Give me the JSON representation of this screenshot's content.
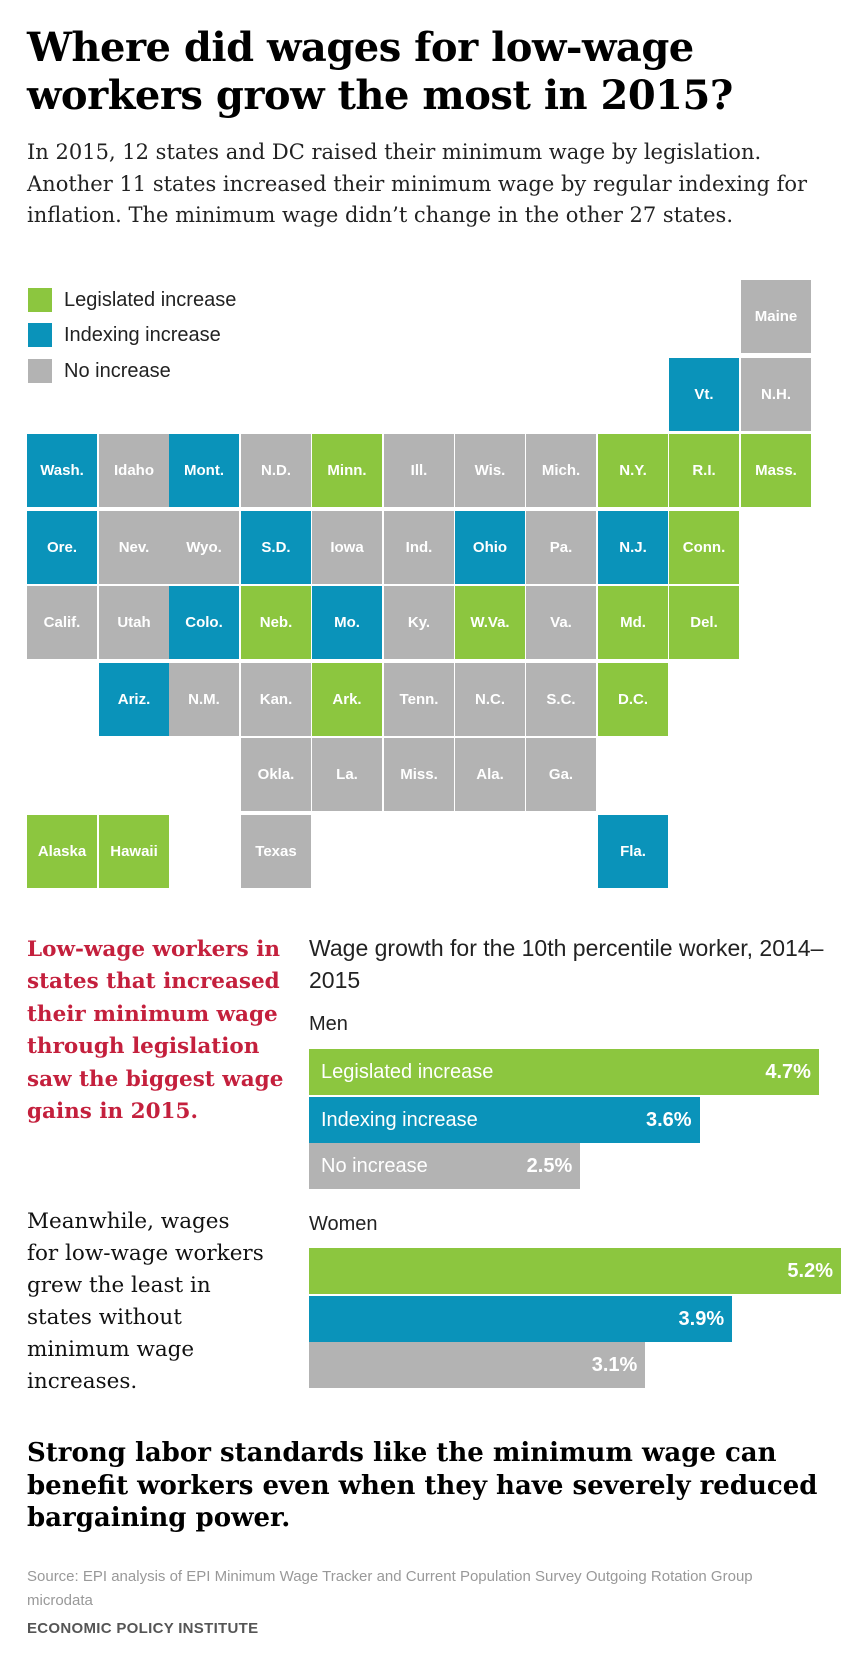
{
  "title": "Where did wages for low-wage workers grow the most in 2015?",
  "intro": "In 2015, 12 states and DC raised their minimum wage by legislation. Another 11 states increased their minimum wage by regular indexing for inflation. The minimum wage didn’t change in the other 27 states.",
  "colors": {
    "legislated": "#8cc63f",
    "indexing": "#0a93ba",
    "none": "#b3b3b3",
    "accent_red": "#c4203d"
  },
  "legend": {
    "legislated": "Legislated increase",
    "indexing": "Indexing increase",
    "none": "No increase"
  },
  "map_tiles": [
    {
      "label": "Maine",
      "status": "none"
    },
    {
      "label": "Vt.",
      "status": "indexing"
    },
    {
      "label": "N.H.",
      "status": "none"
    },
    {
      "label": "Wash.",
      "status": "indexing"
    },
    {
      "label": "Idaho",
      "status": "none"
    },
    {
      "label": "Mont.",
      "status": "indexing"
    },
    {
      "label": "N.D.",
      "status": "none"
    },
    {
      "label": "Minn.",
      "status": "legislated"
    },
    {
      "label": "Ill.",
      "status": "none"
    },
    {
      "label": "Wis.",
      "status": "none"
    },
    {
      "label": "Mich.",
      "status": "none"
    },
    {
      "label": "N.Y.",
      "status": "legislated"
    },
    {
      "label": "R.I.",
      "status": "legislated"
    },
    {
      "label": "Mass.",
      "status": "legislated"
    },
    {
      "label": "Ore.",
      "status": "indexing"
    },
    {
      "label": "Nev.",
      "status": "none"
    },
    {
      "label": "Wyo.",
      "status": "none"
    },
    {
      "label": "S.D.",
      "status": "indexing"
    },
    {
      "label": "Iowa",
      "status": "none"
    },
    {
      "label": "Ind.",
      "status": "none"
    },
    {
      "label": "Ohio",
      "status": "indexing"
    },
    {
      "label": "Pa.",
      "status": "none"
    },
    {
      "label": "N.J.",
      "status": "indexing"
    },
    {
      "label": "Conn.",
      "status": "legislated"
    },
    {
      "label": "Calif.",
      "status": "none"
    },
    {
      "label": "Utah",
      "status": "none"
    },
    {
      "label": "Colo.",
      "status": "indexing"
    },
    {
      "label": "Neb.",
      "status": "legislated"
    },
    {
      "label": "Mo.",
      "status": "indexing"
    },
    {
      "label": "Ky.",
      "status": "none"
    },
    {
      "label": "W.Va.",
      "status": "legislated"
    },
    {
      "label": "Va.",
      "status": "none"
    },
    {
      "label": "Md.",
      "status": "legislated"
    },
    {
      "label": "Del.",
      "status": "legislated"
    },
    {
      "label": "Ariz.",
      "status": "indexing"
    },
    {
      "label": "N.M.",
      "status": "none"
    },
    {
      "label": "Kan.",
      "status": "none"
    },
    {
      "label": "Ark.",
      "status": "legislated"
    },
    {
      "label": "Tenn.",
      "status": "none"
    },
    {
      "label": "N.C.",
      "status": "none"
    },
    {
      "label": "S.C.",
      "status": "none"
    },
    {
      "label": "D.C.",
      "status": "legislated"
    },
    {
      "label": "Okla.",
      "status": "none"
    },
    {
      "label": "La.",
      "status": "none"
    },
    {
      "label": "Miss.",
      "status": "none"
    },
    {
      "label": "Ala.",
      "status": "none"
    },
    {
      "label": "Ga.",
      "status": "none"
    },
    {
      "label": "Alaska",
      "status": "legislated"
    },
    {
      "label": "Hawaii",
      "status": "legislated"
    },
    {
      "label": "Texas",
      "status": "none"
    },
    {
      "label": "Fla.",
      "status": "indexing"
    }
  ],
  "takeaway_red": "Low-wage workers in states that increased their minimum wage through legislation saw the biggest wage gains in 2015.",
  "takeaway_black": "Meanwhile, wages for low-wage workers grew the least in states without minimum wage increases.",
  "chart_data": {
    "type": "bar",
    "orientation": "horizontal",
    "title": "Wage growth for the 10th percentile worker, 2014–2015",
    "unit": "%",
    "groups": [
      {
        "name": "Men",
        "bars": [
          {
            "label": "Legislated increase",
            "status": "legislated",
            "value": 4.7,
            "value_label": "4.7%"
          },
          {
            "label": "Indexing increase",
            "status": "indexing",
            "value": 3.6,
            "value_label": "3.6%"
          },
          {
            "label": "No increase",
            "status": "none",
            "value": 2.5,
            "value_label": "2.5%"
          }
        ]
      },
      {
        "name": "Women",
        "bars": [
          {
            "label": "",
            "status": "legislated",
            "value": 5.2,
            "value_label": "5.2%"
          },
          {
            "label": "",
            "status": "indexing",
            "value": 3.9,
            "value_label": "3.9%"
          },
          {
            "label": "",
            "status": "none",
            "value": 3.1,
            "value_label": "3.1%"
          }
        ]
      }
    ]
  },
  "conclusion": "Strong labor standards like the minimum wage can benefit workers even when they have severely reduced bargaining power.",
  "source": "Source: EPI analysis of EPI Minimum Wage Tracker and Current Population Survey Outgoing Rotation Group microdata",
  "organization": "ECONOMIC POLICY INSTITUTE"
}
